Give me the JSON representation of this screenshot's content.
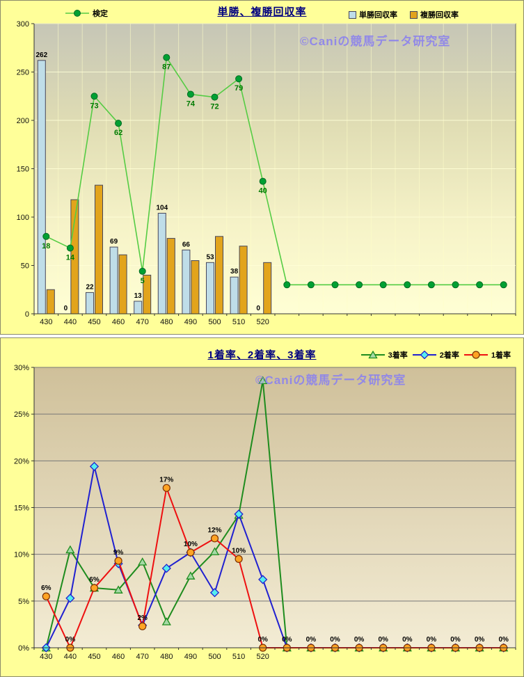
{
  "watermark": "©Caniの競馬データ研究室",
  "chart_data": [
    {
      "type": "bar",
      "title": "単勝、複勝回収率",
      "legend_position": "top",
      "grid": true,
      "ylim": [
        0,
        300
      ],
      "yticks": [
        "0",
        "50",
        "100",
        "150",
        "200",
        "250",
        "300"
      ],
      "categories": [
        "430",
        "440",
        "450",
        "460",
        "470",
        "480",
        "490",
        "500",
        "510",
        "520",
        "",
        "",
        "",
        "",
        "",
        "",
        "",
        "",
        "",
        ""
      ],
      "series": [
        {
          "name": "単勝回収率",
          "type": "bar",
          "color": "#bfdde8",
          "values": [
            262,
            0,
            22,
            69,
            13,
            104,
            66,
            53,
            38,
            0
          ],
          "data_labels": [
            "262",
            "0",
            "22",
            "69",
            "13",
            "104",
            "66",
            "53",
            "38",
            "0"
          ]
        },
        {
          "name": "複勝回収率",
          "type": "bar",
          "color": "#e2a41c",
          "values": [
            25,
            118,
            133,
            61,
            40,
            78,
            55,
            80,
            70,
            53
          ],
          "data_labels": []
        },
        {
          "name": "検定",
          "type": "line",
          "color": "#55cc44",
          "marker_color": "#00a033",
          "axis_values": [
            80,
            68,
            225,
            197,
            44,
            265,
            227,
            224,
            243,
            137,
            30,
            30,
            30,
            30,
            30,
            30,
            30,
            30,
            30,
            30
          ],
          "data_labels": [
            "18",
            "14",
            "73",
            "62",
            "5",
            "87",
            "74",
            "72",
            "79",
            "40",
            "",
            "",
            "",
            "",
            "",
            "",
            "",
            "",
            "",
            ""
          ]
        }
      ]
    },
    {
      "type": "line",
      "title": "1着率、2着率、3着率",
      "legend_position": "top",
      "grid": true,
      "ylim": [
        0,
        30
      ],
      "yticks": [
        "0%",
        "5%",
        "10%",
        "15%",
        "20%",
        "25%",
        "30%"
      ],
      "categories": [
        "430",
        "440",
        "450",
        "460",
        "470",
        "480",
        "490",
        "500",
        "510",
        "520",
        "",
        "",
        "",
        "",
        "",
        "",
        "",
        "",
        "",
        ""
      ],
      "series": [
        {
          "name": "3着率",
          "color": "#1e8c1e",
          "marker": "triangle",
          "marker_fill": "#a6d9a6",
          "values": [
            0,
            10.5,
            6.4,
            6.2,
            9.2,
            2.8,
            7.7,
            10.3,
            14.2,
            28.6,
            0,
            0,
            0,
            0,
            0,
            0,
            0,
            0,
            0,
            0
          ],
          "data_labels": []
        },
        {
          "name": "2着率",
          "color": "#2020d0",
          "marker": "diamond",
          "marker_fill": "#55eeee",
          "values": [
            0,
            5.3,
            19.4,
            9.0,
            2.4,
            8.5,
            10.2,
            5.9,
            14.3,
            7.3,
            0,
            0,
            0,
            0,
            0,
            0,
            0,
            0,
            0,
            0
          ],
          "data_labels": []
        },
        {
          "name": "1着率",
          "color": "#ee1010",
          "marker": "circle",
          "marker_fill": "#ffa424",
          "values": [
            5.5,
            0,
            6.4,
            9.3,
            2.3,
            17.1,
            10.2,
            11.7,
            9.5,
            0,
            0,
            0,
            0,
            0,
            0,
            0,
            0,
            0,
            0,
            0
          ],
          "data_labels": [
            "6%",
            "0%",
            "6%",
            "9%",
            "2%",
            "17%",
            "10%",
            "12%",
            "10%",
            "0%",
            "0%",
            "0%",
            "0%",
            "0%",
            "0%",
            "0%",
            "0%",
            "0%",
            "0%",
            "0%"
          ]
        }
      ]
    }
  ]
}
